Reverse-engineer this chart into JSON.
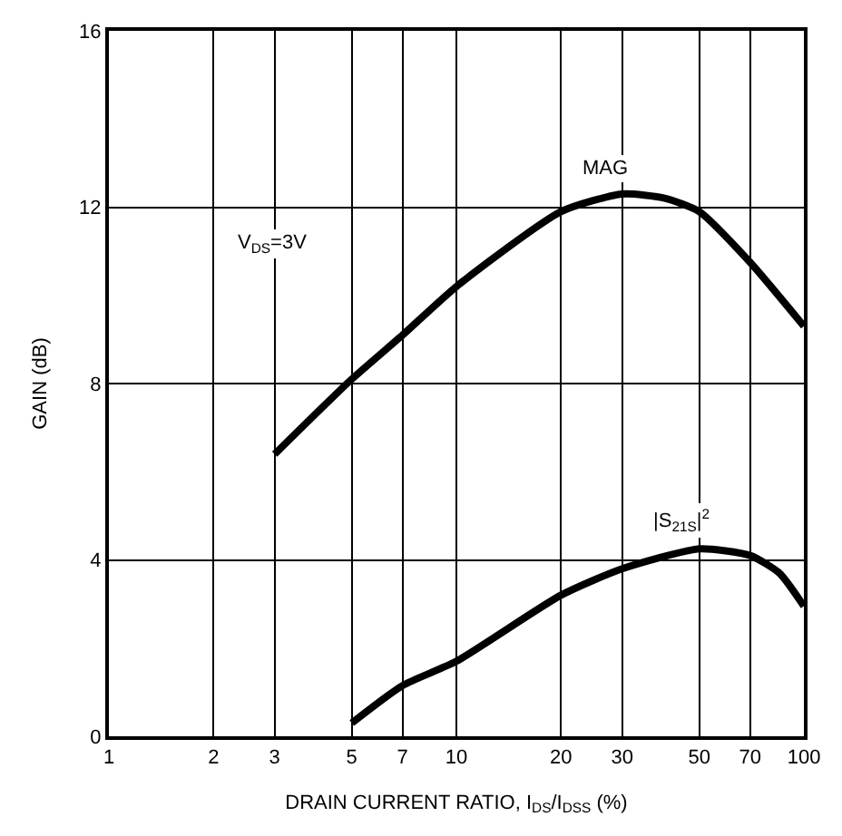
{
  "chart_data": {
    "type": "line",
    "xlabel": "DRAIN CURRENT RATIO, I$_{DS}$/I$_{DSS}$ (%)",
    "ylabel": "GAIN (dB)",
    "annotations": [
      "V$_{DS}$=3V"
    ],
    "series": [
      {
        "name": "MAG",
        "color": "#000000",
        "x": [
          3,
          5,
          7,
          10,
          20,
          30,
          40,
          50,
          70,
          100
        ],
        "values": [
          6.4,
          8.1,
          9.1,
          10.2,
          11.9,
          12.3,
          12.2,
          11.9,
          10.75,
          9.3
        ]
      },
      {
        "name": "|S$_{21S}$|$^{2}$",
        "color": "#000000",
        "x": [
          5,
          7,
          10,
          20,
          30,
          50,
          70,
          85,
          100
        ],
        "values": [
          0.3,
          1.15,
          1.7,
          3.2,
          3.8,
          4.25,
          4.1,
          3.7,
          2.95
        ]
      }
    ],
    "xlim": [
      1,
      100
    ],
    "ylim": [
      0,
      16
    ],
    "log": "x",
    "xticks": [
      1,
      2,
      3,
      5,
      7,
      10,
      20,
      30,
      50,
      70,
      100
    ],
    "yticks": [
      0,
      4,
      8,
      12,
      16
    ],
    "grid": true,
    "legend": false,
    "marker": "none",
    "line_style": "solid"
  }
}
